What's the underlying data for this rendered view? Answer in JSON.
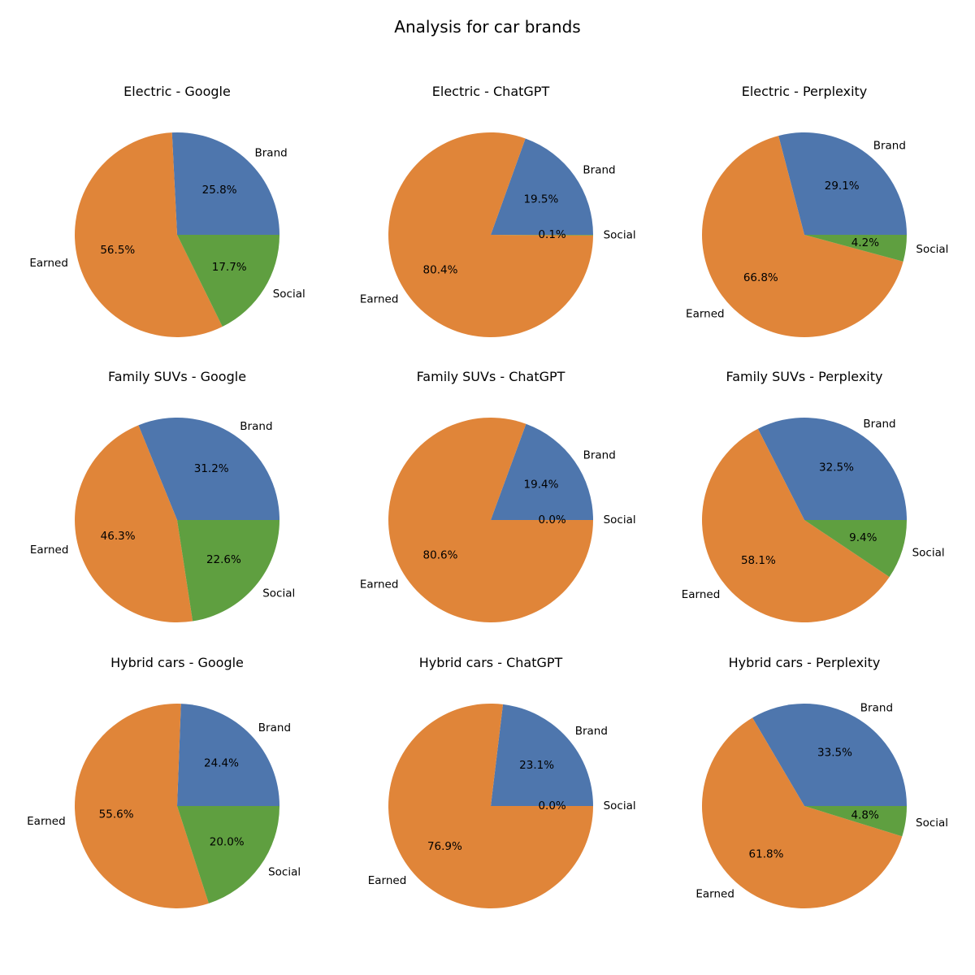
{
  "title": "Analysis for car brands",
  "colors": {
    "Brand": "#4e76ad",
    "Earned": "#e08539",
    "Social": "#5f9f40"
  },
  "chart_data": [
    {
      "type": "pie",
      "title": "Electric - Google",
      "labels": [
        "Brand",
        "Earned",
        "Social"
      ],
      "values": [
        25.8,
        56.5,
        17.7
      ],
      "value_labels": [
        "25.8%",
        "56.5%",
        "17.7%"
      ]
    },
    {
      "type": "pie",
      "title": "Electric - ChatGPT",
      "labels": [
        "Brand",
        "Earned",
        "Social"
      ],
      "values": [
        19.5,
        80.4,
        0.1
      ],
      "value_labels": [
        "19.5%",
        "80.4%",
        "0.1%"
      ]
    },
    {
      "type": "pie",
      "title": "Electric - Perplexity",
      "labels": [
        "Brand",
        "Earned",
        "Social"
      ],
      "values": [
        29.1,
        66.8,
        4.2
      ],
      "value_labels": [
        "29.1%",
        "66.8%",
        "4.2%"
      ]
    },
    {
      "type": "pie",
      "title": "Family SUVs - Google",
      "labels": [
        "Brand",
        "Earned",
        "Social"
      ],
      "values": [
        31.2,
        46.3,
        22.6
      ],
      "value_labels": [
        "31.2%",
        "46.3%",
        "22.6%"
      ]
    },
    {
      "type": "pie",
      "title": "Family SUVs - ChatGPT",
      "labels": [
        "Brand",
        "Earned",
        "Social"
      ],
      "values": [
        19.4,
        80.6,
        0.0
      ],
      "value_labels": [
        "19.4%",
        "80.6%",
        "0.0%"
      ]
    },
    {
      "type": "pie",
      "title": "Family SUVs - Perplexity",
      "labels": [
        "Brand",
        "Earned",
        "Social"
      ],
      "values": [
        32.5,
        58.1,
        9.4
      ],
      "value_labels": [
        "32.5%",
        "58.1%",
        "9.4%"
      ]
    },
    {
      "type": "pie",
      "title": "Hybrid cars - Google",
      "labels": [
        "Brand",
        "Earned",
        "Social"
      ],
      "values": [
        24.4,
        55.6,
        20.0
      ],
      "value_labels": [
        "24.4%",
        "55.6%",
        "20.0%"
      ]
    },
    {
      "type": "pie",
      "title": "Hybrid cars - ChatGPT",
      "labels": [
        "Brand",
        "Earned",
        "Social"
      ],
      "values": [
        23.1,
        76.9,
        0.0
      ],
      "value_labels": [
        "23.1%",
        "76.9%",
        "0.0%"
      ]
    },
    {
      "type": "pie",
      "title": "Hybrid cars - Perplexity",
      "labels": [
        "Brand",
        "Earned",
        "Social"
      ],
      "values": [
        33.5,
        61.8,
        4.8
      ],
      "value_labels": [
        "33.5%",
        "61.8%",
        "4.8%"
      ]
    }
  ]
}
